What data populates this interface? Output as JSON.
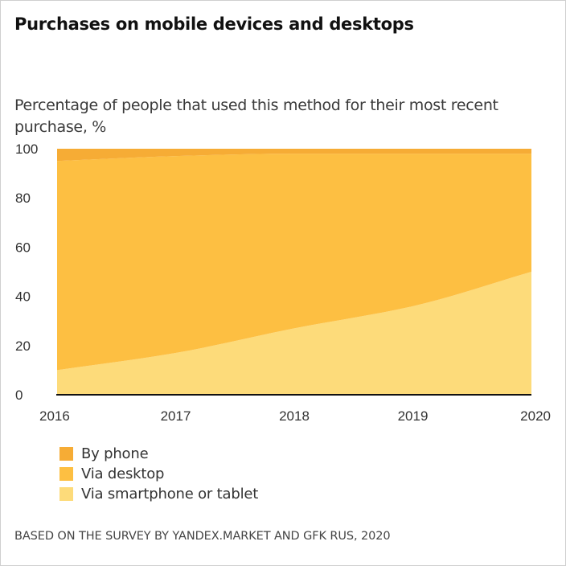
{
  "header": {
    "title": "Purchases on mobile devices and desktops",
    "subtitle": "Percentage of people that used this method for their most recent purchase, %"
  },
  "footer": {
    "source": "BASED ON THE SURVEY BY YANDEX.MARKET AND GFK RUS, 2020"
  },
  "chart_data": {
    "type": "area",
    "stacked": true,
    "title": "Purchases on mobile devices and desktops",
    "subtitle": "Percentage of people that used this method for their most recent purchase, %",
    "xlabel": "",
    "ylabel": "",
    "x": [
      "2016",
      "2017",
      "2018",
      "2019",
      "2020"
    ],
    "ylim": [
      0,
      100
    ],
    "yticks": [
      "0",
      "20",
      "40",
      "60",
      "80",
      "100"
    ],
    "grid": false,
    "legend_position": "bottom-left",
    "series": [
      {
        "name": "Via smartphone or tablet",
        "color": "#FDDB7A",
        "values": [
          10,
          17,
          27,
          36,
          50
        ]
      },
      {
        "name": "Via desktop",
        "color": "#FDBF42",
        "values": [
          85,
          80,
          71,
          62,
          48
        ]
      },
      {
        "name": "By phone",
        "color": "#F6AC35",
        "values": [
          5,
          3,
          2,
          2,
          2
        ]
      }
    ],
    "legend_order": [
      "By phone",
      "Via desktop",
      "Via smartphone or tablet"
    ]
  }
}
